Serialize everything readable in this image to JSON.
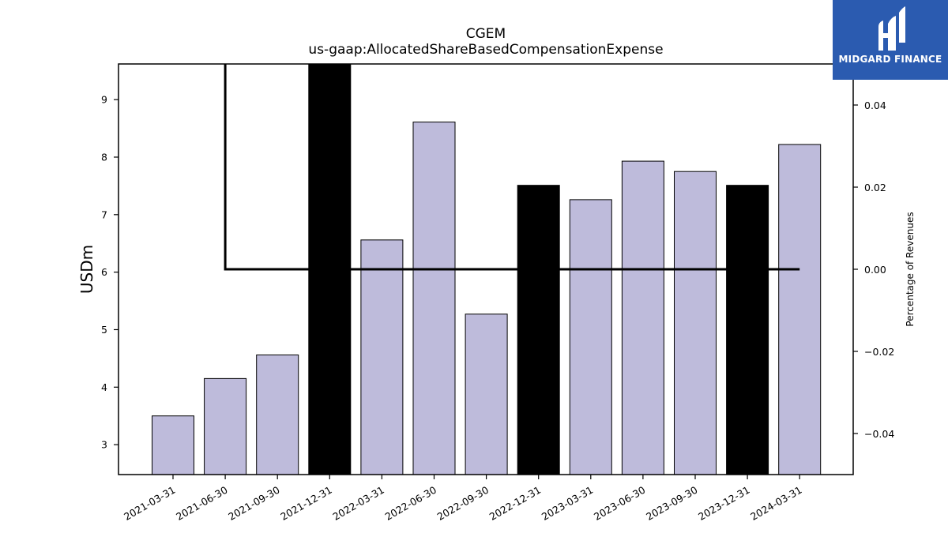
{
  "chart_data": {
    "type": "bar",
    "title": "CGEM",
    "subtitle": "us-gaap:AllocatedShareBasedCompensationExpense",
    "ylabel": "USDm",
    "y2label": "Percentage of Revenues",
    "ylim": [
      2.48,
      9.62
    ],
    "y2lim": [
      -0.05,
      0.05
    ],
    "yticks": [
      3,
      4,
      5,
      6,
      7,
      8,
      9
    ],
    "y2ticks": [
      -0.04,
      -0.02,
      0.0,
      0.02,
      0.04
    ],
    "y2tick_labels": [
      "−0.04",
      "−0.02",
      "0.00",
      "0.02",
      "0.04"
    ],
    "categories": [
      "2021-03-31",
      "2021-06-30",
      "2021-09-30",
      "2021-12-31",
      "2022-03-31",
      "2022-06-30",
      "2022-09-30",
      "2022-12-31",
      "2023-03-31",
      "2023-06-30",
      "2023-09-30",
      "2023-12-31",
      "2024-03-31"
    ],
    "values": [
      3.5,
      4.15,
      4.56,
      9.62,
      6.56,
      8.61,
      5.27,
      7.51,
      7.26,
      7.93,
      7.75,
      7.51,
      8.22
    ],
    "highlight": [
      false,
      false,
      false,
      true,
      false,
      false,
      false,
      true,
      false,
      false,
      false,
      true,
      false
    ],
    "bar_color": "#bebbdb",
    "highlight_color": "#000000",
    "line_series": {
      "x": [
        "2021-06-30",
        "2021-06-30",
        "2024-03-31"
      ],
      "y2": [
        0.05,
        0.0,
        0.0
      ],
      "color": "#000000"
    }
  },
  "logo": {
    "text": "MIDGARD FINANCE",
    "bg_color": "#2b5bb0"
  }
}
